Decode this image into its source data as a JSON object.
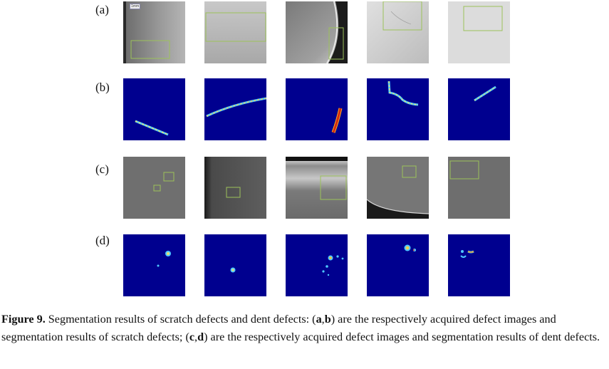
{
  "figure": {
    "row_labels": [
      "(a)",
      "(b)",
      "(c)",
      "(d)"
    ],
    "scale_bar_text": "1mm",
    "caption": {
      "label": "Figure 9.",
      "text_1": " Segmentation results of scratch defects and dent defects: (",
      "ref_a": "a",
      "sep_1": ",",
      "ref_b": "b",
      "text_2": ") are the respectively acquired defect images and segmentation results of scratch defects; (",
      "ref_c": "c",
      "sep_2": ",",
      "ref_d": "d",
      "text_3": ") are the respectively acquired defect images and segmentation results of dent defects."
    },
    "colors": {
      "heatmap_background": "#00008f",
      "box_outline": "#9cc25a"
    }
  }
}
